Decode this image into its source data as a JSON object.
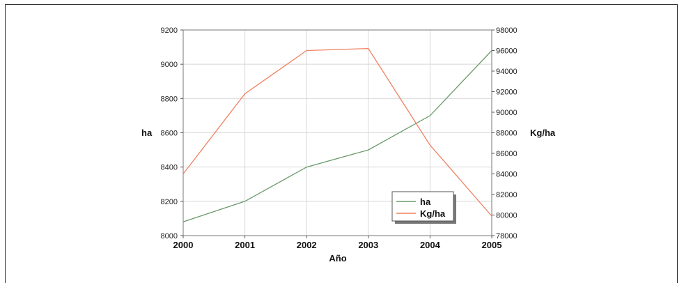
{
  "chart_data": {
    "type": "line",
    "xlabel": "Año",
    "x": [
      "2000",
      "2001",
      "2002",
      "2003",
      "2004",
      "2005"
    ],
    "y_left": {
      "label": "ha",
      "ylim": [
        8000,
        9200
      ],
      "ticks": [
        "8000",
        "8200",
        "8400",
        "8600",
        "8800",
        "9000",
        "9200"
      ]
    },
    "y_right": {
      "label": "Kg/ha",
      "ylim": [
        78000,
        98000
      ],
      "ticks": [
        "78000",
        "80000",
        "82000",
        "84000",
        "86000",
        "88000",
        "90000",
        "92000",
        "94000",
        "96000",
        "98000"
      ]
    },
    "series": [
      {
        "name": "ha",
        "axis": "left",
        "color": "#6a9a6a",
        "values": [
          8080,
          8200,
          8400,
          8500,
          8700,
          9080
        ]
      },
      {
        "name": "Kg/ha",
        "axis": "right",
        "color": "#f08060",
        "values": [
          84000,
          91800,
          96000,
          96200,
          86800,
          79900
        ]
      }
    ],
    "grid": true,
    "legend_position": "bottom-right-inside"
  }
}
